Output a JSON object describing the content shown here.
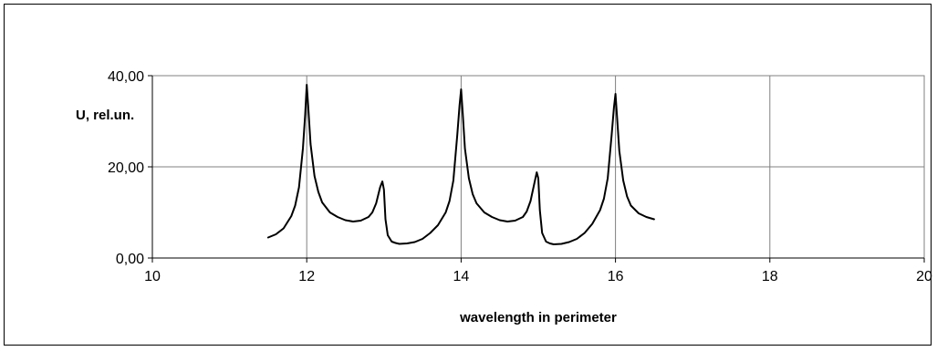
{
  "chart_data": {
    "type": "line",
    "title": "",
    "xlabel": "wavelength  in perimeter",
    "ylabel": "U, rel.un.",
    "xlim": [
      10,
      20
    ],
    "ylim": [
      0,
      40
    ],
    "x_ticks": [
      10,
      12,
      14,
      16,
      18,
      20
    ],
    "x_tick_labels": [
      "10",
      "12",
      "14",
      "16",
      "18",
      "20"
    ],
    "y_ticks": [
      0,
      20,
      40
    ],
    "y_tick_labels": [
      "0,00",
      "20,00",
      "40,00"
    ],
    "grid": true,
    "legend": "none",
    "line_color": "#000000",
    "series": [
      {
        "x": [
          11.5,
          11.6,
          11.7,
          11.8,
          11.85,
          11.9,
          11.95,
          11.98,
          12.0,
          12.02,
          12.05,
          12.1,
          12.15,
          12.2,
          12.3,
          12.4,
          12.5,
          12.6,
          12.7,
          12.8,
          12.85,
          12.9,
          12.95,
          12.98,
          13.0,
          13.02,
          13.05,
          13.1,
          13.15,
          13.2,
          13.3,
          13.4,
          13.5,
          13.6,
          13.7,
          13.8,
          13.85,
          13.9,
          13.95,
          13.98,
          14.0,
          14.02,
          14.05,
          14.1,
          14.15,
          14.2,
          14.3,
          14.4,
          14.5,
          14.6,
          14.7,
          14.8,
          14.85,
          14.9,
          14.95,
          14.98,
          15.0,
          15.02,
          15.05,
          15.1,
          15.15,
          15.2,
          15.3,
          15.4,
          15.5,
          15.6,
          15.7,
          15.8,
          15.85,
          15.9,
          15.95,
          15.98,
          16.0,
          16.02,
          16.05,
          16.1,
          16.15,
          16.2,
          16.3,
          16.4,
          16.5
        ],
        "y": [
          4.5,
          5.2,
          6.5,
          9.2,
          11.5,
          15.5,
          24.0,
          31.5,
          38.0,
          33.0,
          25.0,
          18.0,
          14.5,
          12.2,
          10.0,
          9.0,
          8.3,
          8.0,
          8.2,
          9.0,
          10.0,
          12.0,
          15.5,
          16.8,
          15.0,
          8.5,
          5.0,
          3.6,
          3.3,
          3.1,
          3.2,
          3.5,
          4.2,
          5.5,
          7.2,
          10.0,
          12.5,
          17.0,
          27.0,
          33.5,
          37.0,
          32.0,
          24.0,
          17.5,
          14.0,
          12.0,
          10.0,
          9.0,
          8.3,
          8.0,
          8.2,
          9.0,
          10.2,
          12.5,
          16.5,
          18.8,
          17.5,
          10.5,
          5.5,
          3.6,
          3.2,
          3.0,
          3.1,
          3.5,
          4.2,
          5.5,
          7.5,
          10.5,
          13.0,
          17.5,
          27.0,
          33.0,
          36.0,
          31.0,
          23.5,
          17.0,
          13.5,
          11.5,
          9.8,
          9.0,
          8.5
        ]
      }
    ]
  }
}
